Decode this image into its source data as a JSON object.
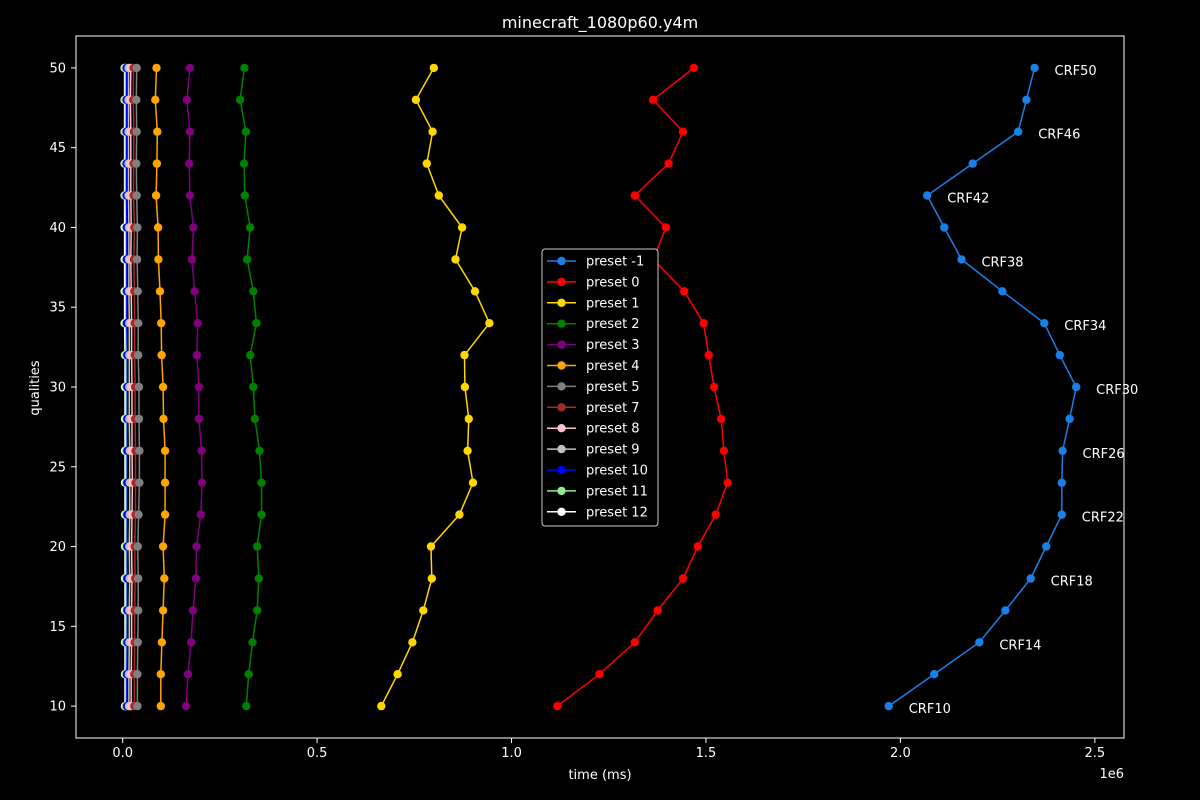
{
  "chart_data": {
    "type": "line",
    "title": "minecraft_1080p60.y4m",
    "xlabel": "time (ms)",
    "ylabel": "qualities",
    "x_offset_label": "1e6",
    "xlim": [
      -0.12,
      2.575
    ],
    "ylim": [
      8,
      52
    ],
    "x_ticks": [
      0.0,
      0.5,
      1.0,
      1.5,
      2.0,
      2.5
    ],
    "x_tick_labels": [
      "0.0",
      "0.5",
      "1.0",
      "1.5",
      "2.0",
      "2.5"
    ],
    "y_ticks": [
      10,
      15,
      20,
      25,
      30,
      35,
      40,
      45,
      50
    ],
    "y_tick_labels": [
      "10",
      "15",
      "20",
      "25",
      "30",
      "35",
      "40",
      "45",
      "50"
    ],
    "grid": false,
    "legend_position": "center",
    "y": [
      10,
      12,
      14,
      16,
      18,
      20,
      22,
      24,
      26,
      28,
      30,
      32,
      34,
      36,
      38,
      40,
      42,
      44,
      46,
      48,
      50
    ],
    "annotations": [
      {
        "text": "CRF10",
        "x": 1.97,
        "y": 10
      },
      {
        "text": "CRF14",
        "x": 2.203,
        "y": 14
      },
      {
        "text": "CRF18",
        "x": 2.335,
        "y": 18
      },
      {
        "text": "CRF22",
        "x": 2.415,
        "y": 22
      },
      {
        "text": "CRF26",
        "x": 2.417,
        "y": 26
      },
      {
        "text": "CRF30",
        "x": 2.452,
        "y": 30
      },
      {
        "text": "CRF34",
        "x": 2.37,
        "y": 34
      },
      {
        "text": "CRF38",
        "x": 2.157,
        "y": 38
      },
      {
        "text": "CRF42",
        "x": 2.069,
        "y": 42
      },
      {
        "text": "CRF46",
        "x": 2.303,
        "y": 46
      },
      {
        "text": "CRF50",
        "x": 2.345,
        "y": 50
      }
    ],
    "series": [
      {
        "name": "preset -1",
        "color": "#1a80e6",
        "x": [
          1.97,
          2.087,
          2.203,
          2.27,
          2.335,
          2.375,
          2.415,
          2.415,
          2.417,
          2.435,
          2.452,
          2.41,
          2.37,
          2.262,
          2.157,
          2.113,
          2.069,
          2.186,
          2.303,
          2.324,
          2.345
        ]
      },
      {
        "name": "preset 0",
        "color": "#ff0000",
        "x": [
          1.118,
          1.226,
          1.317,
          1.376,
          1.441,
          1.479,
          1.525,
          1.556,
          1.546,
          1.539,
          1.521,
          1.507,
          1.494,
          1.444,
          1.364,
          1.397,
          1.317,
          1.404,
          1.441,
          1.364,
          1.469
        ]
      },
      {
        "name": "preset 1",
        "color": "#ffd700",
        "x": [
          0.665,
          0.707,
          0.745,
          0.773,
          0.795,
          0.793,
          0.866,
          0.901,
          0.887,
          0.89,
          0.88,
          0.879,
          0.943,
          0.906,
          0.856,
          0.873,
          0.813,
          0.782,
          0.797,
          0.754,
          0.8
        ]
      },
      {
        "name": "preset 2",
        "color": "#008000",
        "x": [
          0.318,
          0.324,
          0.334,
          0.346,
          0.35,
          0.346,
          0.357,
          0.357,
          0.352,
          0.34,
          0.336,
          0.328,
          0.344,
          0.336,
          0.32,
          0.328,
          0.314,
          0.312,
          0.317,
          0.302,
          0.313
        ]
      },
      {
        "name": "preset 3",
        "color": "#800080",
        "x": [
          0.163,
          0.168,
          0.176,
          0.181,
          0.188,
          0.19,
          0.201,
          0.204,
          0.203,
          0.196,
          0.196,
          0.191,
          0.193,
          0.185,
          0.178,
          0.182,
          0.173,
          0.171,
          0.173,
          0.165,
          0.173
        ]
      },
      {
        "name": "preset 4",
        "color": "#ffa500",
        "x": [
          0.098,
          0.098,
          0.101,
          0.104,
          0.107,
          0.104,
          0.109,
          0.109,
          0.109,
          0.105,
          0.104,
          0.1,
          0.099,
          0.096,
          0.092,
          0.091,
          0.086,
          0.088,
          0.089,
          0.084,
          0.087
        ]
      },
      {
        "name": "preset 5",
        "color": "#808080",
        "x": [
          0.038,
          0.038,
          0.039,
          0.04,
          0.04,
          0.039,
          0.041,
          0.043,
          0.043,
          0.042,
          0.042,
          0.04,
          0.04,
          0.039,
          0.037,
          0.038,
          0.036,
          0.035,
          0.036,
          0.035,
          0.036
        ]
      },
      {
        "name": "preset 7",
        "color": "#a52a2a",
        "x": [
          0.03,
          0.03,
          0.031,
          0.031,
          0.032,
          0.031,
          0.033,
          0.033,
          0.033,
          0.032,
          0.032,
          0.031,
          0.031,
          0.03,
          0.029,
          0.03,
          0.028,
          0.028,
          0.029,
          0.027,
          0.028
        ]
      },
      {
        "name": "preset 8",
        "color": "#ffc0cb",
        "x": [
          0.022,
          0.022,
          0.023,
          0.023,
          0.024,
          0.023,
          0.024,
          0.025,
          0.024,
          0.024,
          0.024,
          0.023,
          0.023,
          0.022,
          0.021,
          0.022,
          0.021,
          0.021,
          0.021,
          0.02,
          0.021
        ]
      },
      {
        "name": "preset 9",
        "color": "#c0c0c0",
        "x": [
          0.016,
          0.016,
          0.017,
          0.017,
          0.018,
          0.017,
          0.018,
          0.018,
          0.018,
          0.017,
          0.017,
          0.017,
          0.017,
          0.016,
          0.016,
          0.016,
          0.015,
          0.015,
          0.015,
          0.015,
          0.015
        ]
      },
      {
        "name": "preset 10",
        "color": "#0000ff",
        "x": [
          0.011,
          0.011,
          0.012,
          0.012,
          0.012,
          0.012,
          0.012,
          0.012,
          0.012,
          0.012,
          0.012,
          0.012,
          0.011,
          0.011,
          0.011,
          0.011,
          0.01,
          0.01,
          0.01,
          0.01,
          0.01
        ]
      },
      {
        "name": "preset 11",
        "color": "#90ee90",
        "x": [
          0.008,
          0.008,
          0.008,
          0.009,
          0.009,
          0.008,
          0.009,
          0.009,
          0.009,
          0.009,
          0.009,
          0.008,
          0.008,
          0.008,
          0.008,
          0.008,
          0.007,
          0.007,
          0.007,
          0.007,
          0.007
        ]
      },
      {
        "name": "preset 12",
        "color": "#ffffff",
        "x": [
          0.006,
          0.006,
          0.006,
          0.006,
          0.006,
          0.006,
          0.006,
          0.006,
          0.006,
          0.006,
          0.006,
          0.006,
          0.005,
          0.005,
          0.005,
          0.005,
          0.005,
          0.005,
          0.005,
          0.005,
          0.005
        ]
      }
    ]
  }
}
